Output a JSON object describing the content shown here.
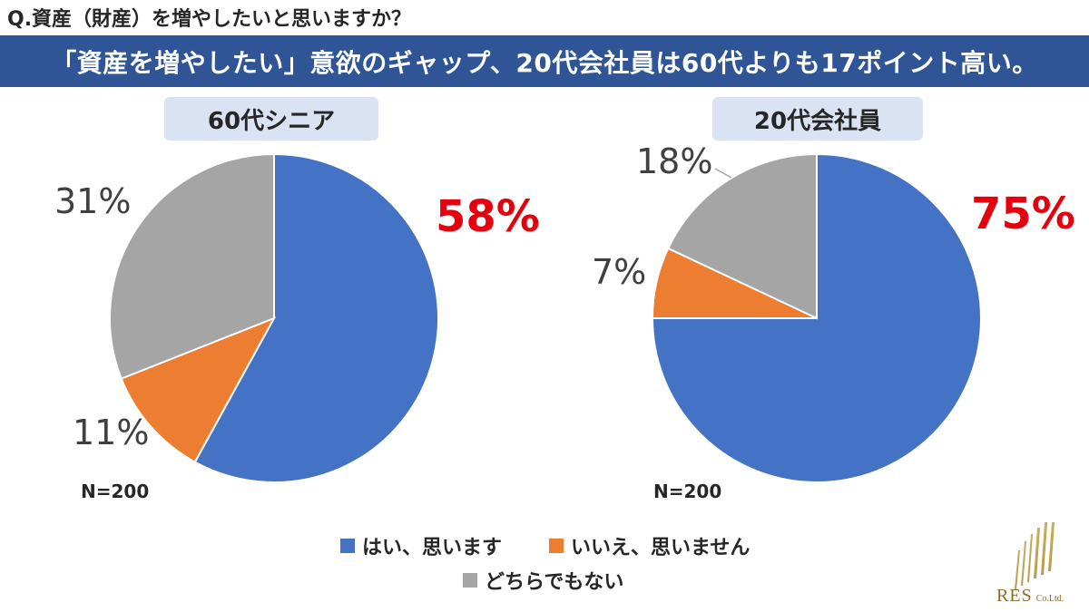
{
  "question": "Q.資産（財産）を増やしたいと思いますか？",
  "headline": "「資産を増やしたい」意欲のギャップ、20代会社員は60代よりも17ポイント高い。",
  "colors": {
    "yes": "#4472c4",
    "no": "#ed7d31",
    "neither": "#a5a5a5",
    "highlight": "#e6000d",
    "headline_bar": "#2f5597",
    "pill": "#dae3f3"
  },
  "chart_data": [
    {
      "type": "pie",
      "title": "60代シニア",
      "note": "N=200",
      "categories": [
        "はい、思います",
        "いいえ、思いません",
        "どちらでもない"
      ],
      "values": [
        58,
        11,
        31
      ],
      "labels": [
        "58%",
        "11%",
        "31%"
      ]
    },
    {
      "type": "pie",
      "title": "20代会社員",
      "note": "N=200",
      "categories": [
        "はい、思います",
        "いいえ、思いません",
        "どちらでもない"
      ],
      "values": [
        75,
        7,
        18
      ],
      "labels": [
        "75%",
        "7%",
        "18%"
      ]
    }
  ],
  "legend": {
    "position": "bottom",
    "items": [
      "はい、思います",
      "いいえ、思いません",
      "どちらでもない"
    ]
  },
  "logo": {
    "name": "RES",
    "suffix": "Co.Ltd."
  }
}
